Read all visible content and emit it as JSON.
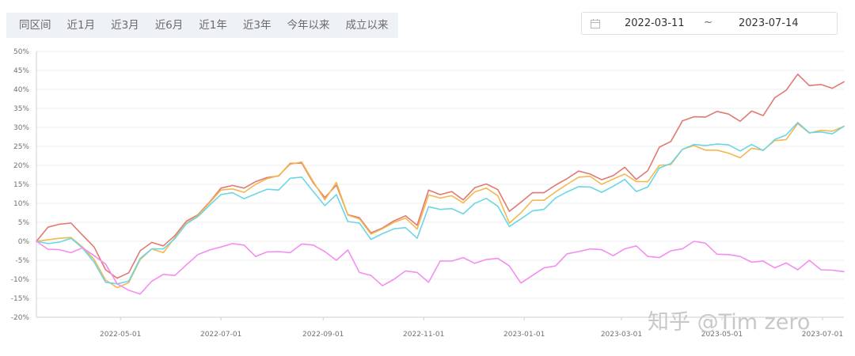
{
  "tabs": [
    "同区间",
    "近1月",
    "近3月",
    "近6月",
    "近1年",
    "近3年",
    "今年以来",
    "成立以来"
  ],
  "date_range": {
    "start": "2022-03-11",
    "separator": "~",
    "end": "2023-07-14"
  },
  "watermark": "知乎 @Tim zero",
  "colors": {
    "red": "#e07a72",
    "orange": "#f3b84e",
    "cyan": "#6bd6e6",
    "pink": "#f38ef0",
    "grid": "#eeeeee",
    "axis": "#cfcfcf"
  },
  "chart_data": {
    "type": "line",
    "ylim": [
      -20,
      50
    ],
    "y_ticks": [
      -20,
      -15,
      -10,
      -5,
      0,
      5,
      10,
      15,
      20,
      25,
      30,
      35,
      40,
      45,
      50
    ],
    "y_tick_labels": [
      "-20%",
      "-15%",
      "-10%",
      "-5%",
      "0%",
      "5%",
      "10%",
      "15%",
      "20%",
      "25%",
      "30%",
      "35%",
      "40%",
      "45%",
      "50%"
    ],
    "x_tick_labels": [
      "2022-05-01",
      "2022-07-01",
      "2022-09-01",
      "2022-11-01",
      "2023-01-01",
      "2023-03-01",
      "2023-05-01",
      "2023-07-01"
    ],
    "grid": true,
    "legend": "none",
    "x": [
      "2022-03-11",
      "2022-03-18",
      "2022-03-25",
      "2022-04-01",
      "2022-04-08",
      "2022-04-15",
      "2022-04-22",
      "2022-04-29",
      "2022-05-06",
      "2022-05-13",
      "2022-05-20",
      "2022-05-27",
      "2022-06-03",
      "2022-06-10",
      "2022-06-17",
      "2022-06-24",
      "2022-07-01",
      "2022-07-08",
      "2022-07-15",
      "2022-07-22",
      "2022-07-29",
      "2022-08-05",
      "2022-08-12",
      "2022-08-19",
      "2022-08-26",
      "2022-09-02",
      "2022-09-09",
      "2022-09-16",
      "2022-09-23",
      "2022-09-30",
      "2022-10-07",
      "2022-10-14",
      "2022-10-21",
      "2022-10-28",
      "2022-11-04",
      "2022-11-11",
      "2022-11-18",
      "2022-11-25",
      "2022-12-02",
      "2022-12-09",
      "2022-12-16",
      "2022-12-23",
      "2022-12-30",
      "2023-01-06",
      "2023-01-13",
      "2023-01-20",
      "2023-01-27",
      "2023-02-03",
      "2023-02-10",
      "2023-02-17",
      "2023-02-24",
      "2023-03-03",
      "2023-03-10",
      "2023-03-17",
      "2023-03-24",
      "2023-03-31",
      "2023-04-07",
      "2023-04-14",
      "2023-04-21",
      "2023-04-28",
      "2023-05-05",
      "2023-05-12",
      "2023-05-19",
      "2023-05-26",
      "2023-06-02",
      "2023-06-09",
      "2023-06-16",
      "2023-06-23",
      "2023-06-30",
      "2023-07-07",
      "2023-07-14"
    ],
    "series": [
      {
        "color": "red",
        "values": [
          0,
          3.7,
          4.5,
          4.8,
          1.6,
          -1.5,
          -7.5,
          -9.7,
          -8.3,
          -2.5,
          -0.3,
          -1.2,
          1.5,
          5.3,
          7.0,
          10.3,
          14.0,
          14.7,
          14.0,
          15.7,
          16.8,
          17.2,
          20.5,
          20.6,
          15.4,
          11.5,
          14.8,
          7.0,
          6.2,
          2.2,
          3.5,
          5.4,
          6.7,
          4.2,
          13.5,
          12.3,
          13.1,
          10.9,
          14.1,
          15.1,
          13.6,
          7.9,
          10.3,
          12.8,
          12.8,
          14.8,
          16.5,
          18.5,
          17.7,
          16.2,
          17.3,
          19.5,
          16.3,
          18.6,
          24.8,
          26.3,
          31.7,
          32.8,
          32.7,
          34.2,
          33.5,
          31.6,
          34.3,
          33.1,
          37.8,
          39.8,
          44.0,
          41.0,
          41.3,
          40.3,
          42.0
        ]
      },
      {
        "color": "orange",
        "values": [
          0,
          0.4,
          0.8,
          1.0,
          -1.5,
          -4.8,
          -10.2,
          -12.2,
          -10.9,
          -4.8,
          -2.0,
          -3.0,
          1.0,
          4.8,
          6.8,
          10.1,
          13.5,
          13.8,
          12.9,
          15.0,
          16.5,
          17.3,
          20.3,
          20.9,
          15.7,
          10.9,
          15.5,
          6.9,
          5.9,
          1.9,
          3.3,
          5.0,
          6.1,
          3.2,
          12.2,
          11.4,
          12.0,
          10.1,
          13.0,
          14.0,
          12.0,
          4.8,
          7.5,
          10.8,
          10.8,
          13.0,
          15.0,
          16.9,
          17.1,
          15.0,
          16.4,
          17.7,
          15.7,
          15.7,
          20.0,
          20.2,
          24.2,
          25.2,
          24.0,
          24.0,
          23.2,
          22.0,
          24.5,
          24.0,
          26.5,
          26.8,
          31.0,
          28.5,
          29.2,
          29.0,
          30.3
        ]
      },
      {
        "color": "cyan",
        "values": [
          0,
          -0.6,
          -0.2,
          0.8,
          -1.8,
          -5.5,
          -10.8,
          -11.2,
          -10.5,
          -4.5,
          -2.0,
          -2.0,
          0.7,
          4.6,
          6.5,
          9.5,
          12.3,
          12.8,
          11.2,
          12.5,
          13.7,
          13.5,
          16.6,
          16.9,
          13.1,
          9.4,
          12.3,
          5.2,
          4.8,
          0.5,
          2.0,
          3.3,
          3.6,
          0.8,
          9.1,
          8.4,
          8.6,
          7.2,
          10.0,
          11.3,
          9.2,
          3.9,
          5.9,
          8.0,
          8.4,
          11.4,
          13.0,
          14.4,
          14.3,
          12.9,
          14.5,
          16.3,
          13.1,
          14.3,
          19.3,
          20.5,
          24.2,
          25.5,
          25.2,
          25.6,
          25.4,
          23.8,
          25.5,
          23.9,
          26.8,
          28.0,
          31.3,
          28.6,
          28.8,
          28.3,
          30.3
        ]
      },
      {
        "color": "pink",
        "values": [
          0,
          -2.1,
          -2.2,
          -3.0,
          -1.7,
          -3.8,
          -6.0,
          -11.2,
          -12.9,
          -13.9,
          -10.5,
          -8.7,
          -9.0,
          -6.2,
          -3.5,
          -2.3,
          -1.5,
          -0.6,
          -1.0,
          -4.0,
          -2.8,
          -2.7,
          -3.0,
          -0.7,
          -1.0,
          -2.7,
          -5.0,
          -2.3,
          -8.2,
          -9.0,
          -11.7,
          -10.0,
          -7.8,
          -8.2,
          -10.8,
          -5.2,
          -5.2,
          -4.3,
          -5.8,
          -4.8,
          -4.5,
          -6.5,
          -11.0,
          -9.0,
          -7.0,
          -6.5,
          -3.3,
          -2.7,
          -2.0,
          -2.2,
          -3.8,
          -2.0,
          -1.2,
          -4.0,
          -4.3,
          -2.5,
          -2.0,
          0,
          -0.5,
          -3.4,
          -3.5,
          -4.0,
          -5.5,
          -5.2,
          -7.0,
          -5.7,
          -7.5,
          -5.0,
          -7.5,
          -7.6,
          -8.0
        ]
      }
    ]
  }
}
